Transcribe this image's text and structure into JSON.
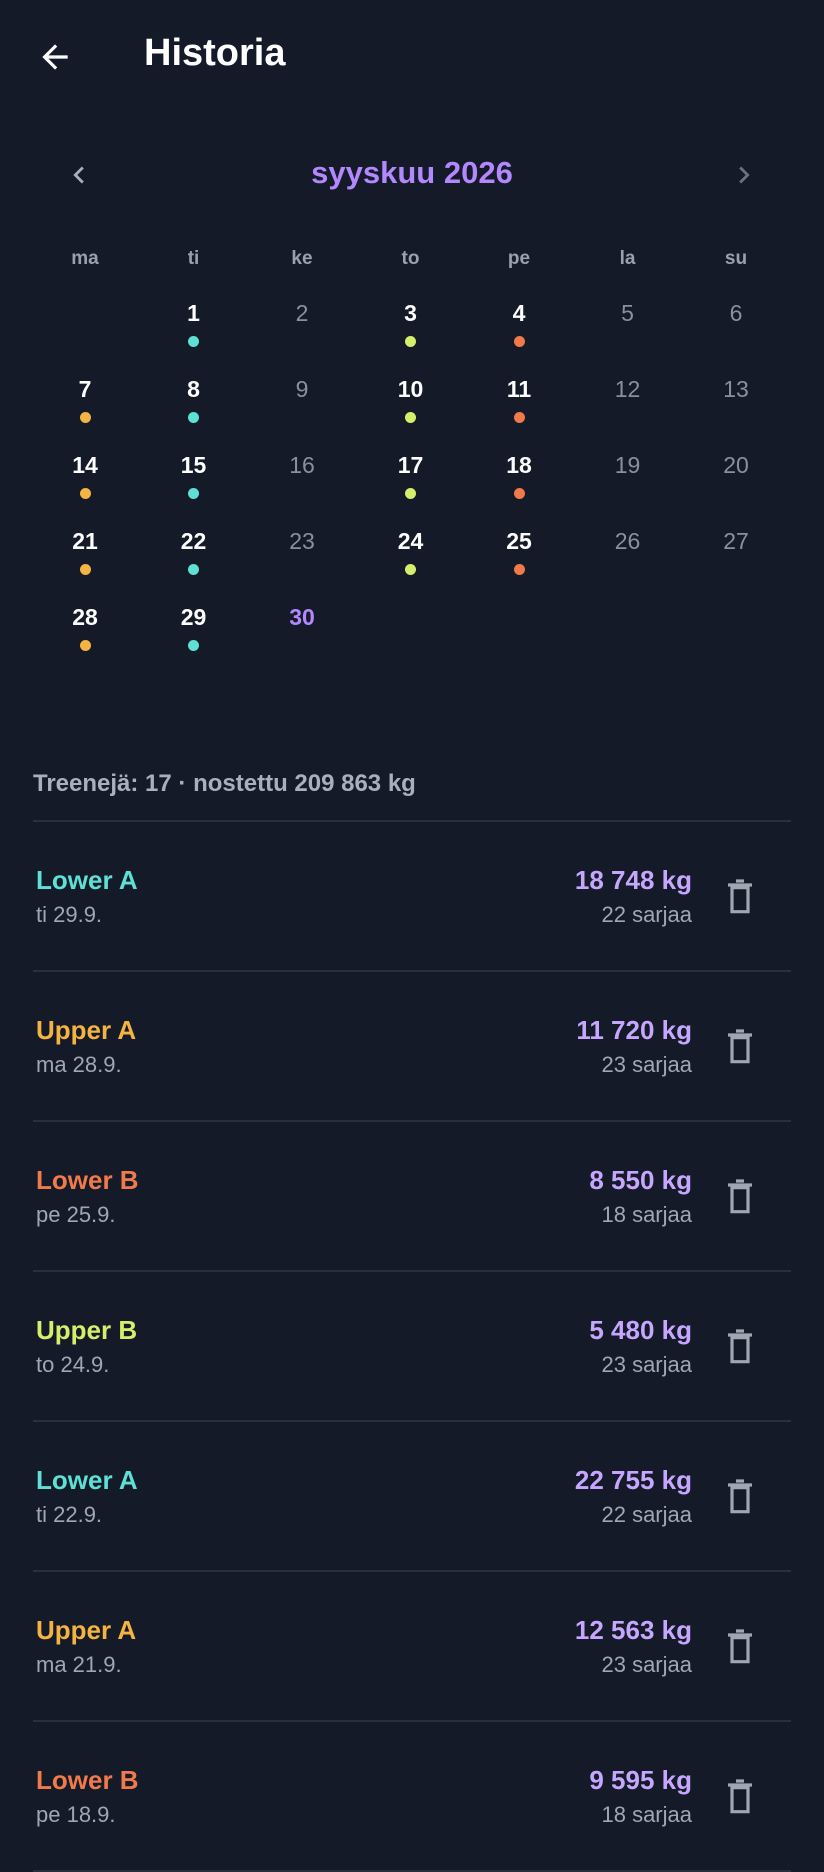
{
  "header": {
    "title": "Historia"
  },
  "calendar": {
    "month": "syyskuu 2026",
    "first_column": 1,
    "weekdays": [
      "ma",
      "ti",
      "ke",
      "to",
      "pe",
      "la",
      "su"
    ],
    "days": [
      {
        "label": "1",
        "dot": "#5ee0d5"
      },
      {
        "label": "2"
      },
      {
        "label": "3",
        "dot": "#d4f06a"
      },
      {
        "label": "4",
        "dot": "#f07a4a"
      },
      {
        "label": "5"
      },
      {
        "label": "6"
      },
      {
        "label": "7",
        "dot": "#f5b342"
      },
      {
        "label": "8",
        "dot": "#5ee0d5"
      },
      {
        "label": "9"
      },
      {
        "label": "10",
        "dot": "#d4f06a"
      },
      {
        "label": "11",
        "dot": "#f07a4a"
      },
      {
        "label": "12"
      },
      {
        "label": "13"
      },
      {
        "label": "14",
        "dot": "#f5b342"
      },
      {
        "label": "15",
        "dot": "#5ee0d5"
      },
      {
        "label": "16"
      },
      {
        "label": "17",
        "dot": "#d4f06a"
      },
      {
        "label": "18",
        "dot": "#f07a4a"
      },
      {
        "label": "19"
      },
      {
        "label": "20"
      },
      {
        "label": "21",
        "dot": "#f5b342"
      },
      {
        "label": "22",
        "dot": "#5ee0d5"
      },
      {
        "label": "23"
      },
      {
        "label": "24",
        "dot": "#d4f06a"
      },
      {
        "label": "25",
        "dot": "#f07a4a"
      },
      {
        "label": "26"
      },
      {
        "label": "27"
      },
      {
        "label": "28",
        "dot": "#f5b342"
      },
      {
        "label": "29",
        "dot": "#5ee0d5"
      },
      {
        "label": "30",
        "today": true
      }
    ]
  },
  "summary": "Treenejä: 17 · nostettu 209 863 kg",
  "workouts": [
    {
      "name": "Lower A",
      "date": "ti 29.9.",
      "weight": "18 748 kg",
      "sets": "22 sarjaa",
      "color": "#5ee0d5"
    },
    {
      "name": "Upper A",
      "date": "ma 28.9.",
      "weight": "11 720 kg",
      "sets": "23 sarjaa",
      "color": "#f5b342"
    },
    {
      "name": "Lower B",
      "date": "pe 25.9.",
      "weight": "8 550 kg",
      "sets": "18 sarjaa",
      "color": "#f07a4a"
    },
    {
      "name": "Upper B",
      "date": "to 24.9.",
      "weight": "5 480 kg",
      "sets": "23 sarjaa",
      "color": "#d4f06a"
    },
    {
      "name": "Lower A",
      "date": "ti 22.9.",
      "weight": "22 755 kg",
      "sets": "22 sarjaa",
      "color": "#5ee0d5"
    },
    {
      "name": "Upper A",
      "date": "ma 21.9.",
      "weight": "12 563 kg",
      "sets": "23 sarjaa",
      "color": "#f5b342"
    },
    {
      "name": "Lower B",
      "date": "pe 18.9.",
      "weight": "9 595 kg",
      "sets": "18 sarjaa",
      "color": "#f07a4a"
    }
  ]
}
